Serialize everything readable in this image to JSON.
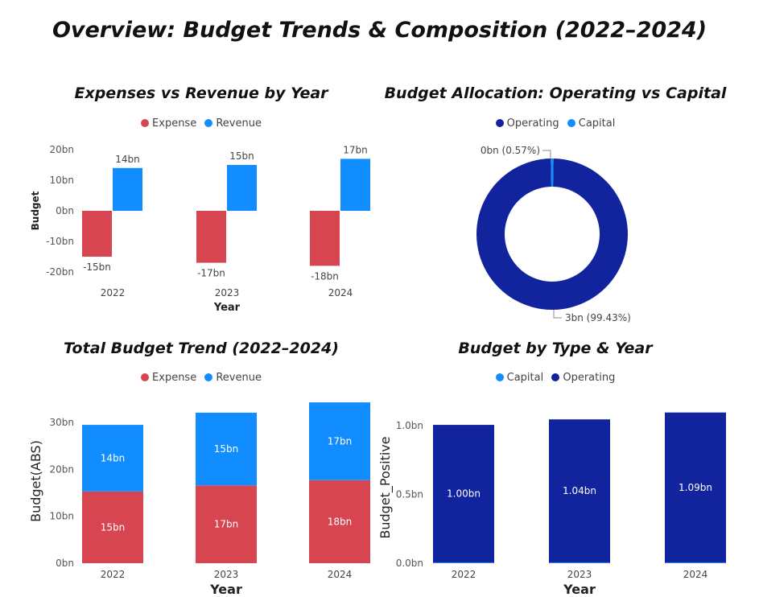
{
  "title": "Overview: Budget Trends & Composition (2022–2024)",
  "colors": {
    "expense": "#d64550",
    "revenue": "#118dff",
    "operating": "#12239e",
    "capital": "#118dff"
  },
  "chart_data": [
    {
      "id": "expenses-vs-revenue",
      "type": "bar",
      "title": "Expenses vs Revenue by Year",
      "xlabel": "Year",
      "ylabel": "Budget",
      "categories": [
        "2022",
        "2023",
        "2024"
      ],
      "series": [
        {
          "name": "Expense",
          "values": [
            -15,
            -17,
            -18
          ],
          "labels": [
            "-15bn",
            "-17bn",
            "-18bn"
          ]
        },
        {
          "name": "Revenue",
          "values": [
            14,
            15,
            17
          ],
          "labels": [
            "14bn",
            "15bn",
            "17bn"
          ]
        }
      ],
      "yticks": [
        "20bn",
        "10bn",
        "0bn",
        "-10bn",
        "-20bn"
      ],
      "ytick_values": [
        20,
        10,
        0,
        -10,
        -20
      ],
      "ylim": [
        -20,
        20
      ],
      "legend": "top-center",
      "grid": false
    },
    {
      "id": "budget-allocation",
      "type": "pie",
      "title": "Budget Allocation: Operating vs Capital",
      "labels": [
        "Operating",
        "Capital"
      ],
      "values": [
        99.43,
        0.57
      ],
      "slice_labels": [
        "3bn (99.43%)",
        "0bn (0.57%)"
      ],
      "donut": true,
      "legend": "top-center"
    },
    {
      "id": "total-budget-trend",
      "type": "bar",
      "stacked": true,
      "title": "Total Budget Trend (2022–2024)",
      "xlabel": "Year",
      "ylabel": "Budget(ABS)",
      "categories": [
        "2022",
        "2023",
        "2024"
      ],
      "series": [
        {
          "name": "Expense",
          "values": [
            15.3,
            16.6,
            17.7
          ],
          "labels": [
            "15bn",
            "17bn",
            "18bn"
          ]
        },
        {
          "name": "Revenue",
          "values": [
            14.2,
            15.5,
            16.6
          ],
          "labels": [
            "14bn",
            "15bn",
            "17bn"
          ]
        }
      ],
      "yticks": [
        "30bn",
        "20bn",
        "10bn",
        "0bn"
      ],
      "ytick_values": [
        30,
        20,
        10,
        0
      ],
      "ylim": [
        0,
        35
      ],
      "legend": "top-center",
      "grid": false
    },
    {
      "id": "budget-by-type-year",
      "type": "bar",
      "stacked": true,
      "title": "Budget by Type & Year",
      "xlabel": "Year",
      "ylabel": "Budget_Positive",
      "categories": [
        "2022",
        "2023",
        "2024"
      ],
      "series": [
        {
          "name": "Capital",
          "values": [
            0.006,
            0.006,
            0.006
          ],
          "labels": [
            "",
            "",
            ""
          ]
        },
        {
          "name": "Operating",
          "values": [
            1.0,
            1.04,
            1.09
          ],
          "labels": [
            "1.00bn",
            "1.04bn",
            "1.09bn"
          ]
        }
      ],
      "yticks": [
        "1.0bn",
        "0.5bn",
        "0.0bn"
      ],
      "ytick_values": [
        1.0,
        0.5,
        0.0
      ],
      "ylim": [
        0,
        1.1
      ],
      "legend": "top-center",
      "grid": false
    }
  ]
}
